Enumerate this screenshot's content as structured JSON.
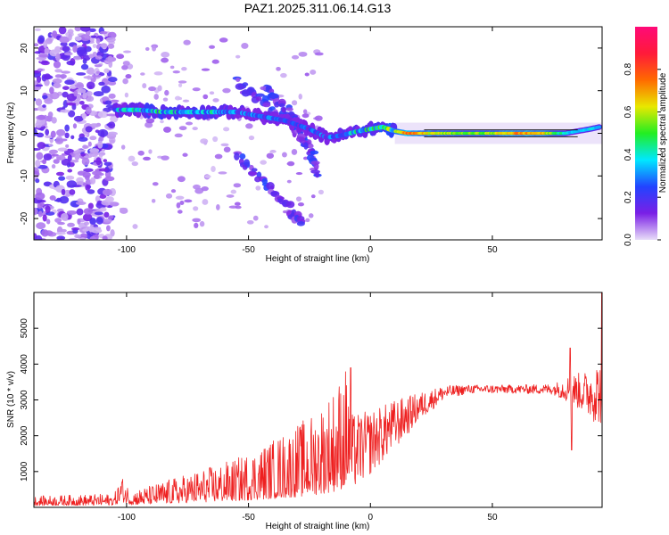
{
  "title": "PAZ1.2025.311.06.14.G13",
  "chart_data": [
    {
      "type": "heatmap",
      "name": "spectrogram",
      "xlabel": "Height of straight line (km)",
      "ylabel": "Frequency (Hz)",
      "xlim": [
        -138,
        95
      ],
      "ylim": [
        -25,
        25
      ],
      "xticks": [
        -100,
        -50,
        0,
        50
      ],
      "yticks": [
        -20,
        -10,
        0,
        10,
        20
      ],
      "colorbar": {
        "label": "Normalized spectral amplitude",
        "range": [
          0,
          1
        ],
        "ticks": [
          0.0,
          0.2,
          0.4,
          0.6,
          0.8
        ],
        "colors": [
          "#e8ddf8",
          "#7a1fe6",
          "#2244ff",
          "#00e8ff",
          "#22ee22",
          "#e8e800",
          "#ff6a00",
          "#ff1a3a",
          "#ff0a78"
        ]
      },
      "ridge": [
        {
          "height": -105,
          "freq": 5.5,
          "amp": 0.35
        },
        {
          "height": -95,
          "freq": 5.5,
          "amp": 0.4
        },
        {
          "height": -85,
          "freq": 5.0,
          "amp": 0.45
        },
        {
          "height": -75,
          "freq": 5.0,
          "amp": 0.35
        },
        {
          "height": -65,
          "freq": 5.0,
          "amp": 0.4
        },
        {
          "height": -55,
          "freq": 5.0,
          "amp": 0.3
        },
        {
          "height": -45,
          "freq": 4.0,
          "amp": 0.3
        },
        {
          "height": -35,
          "freq": 3.0,
          "amp": 0.25
        },
        {
          "height": -25,
          "freq": 1.0,
          "amp": 0.25
        },
        {
          "height": -18,
          "freq": -1.0,
          "amp": 0.3
        },
        {
          "height": -12,
          "freq": -0.5,
          "amp": 0.35
        },
        {
          "height": -5,
          "freq": 0.5,
          "amp": 0.4
        },
        {
          "height": 0,
          "freq": 1.0,
          "amp": 0.45
        },
        {
          "height": 5,
          "freq": 1.5,
          "amp": 0.5
        },
        {
          "height": 10,
          "freq": 0.5,
          "amp": 0.6
        },
        {
          "height": 15,
          "freq": 0.0,
          "amp": 0.8
        },
        {
          "height": 20,
          "freq": 0.0,
          "amp": 0.7
        },
        {
          "height": 30,
          "freq": 0.0,
          "amp": 0.6
        },
        {
          "height": 40,
          "freq": 0.0,
          "amp": 0.55
        },
        {
          "height": 50,
          "freq": 0.0,
          "amp": 0.6
        },
        {
          "height": 60,
          "freq": 0.0,
          "amp": 0.75
        },
        {
          "height": 70,
          "freq": 0.0,
          "amp": 0.7
        },
        {
          "height": 80,
          "freq": 0.0,
          "amp": 0.4
        },
        {
          "height": 85,
          "freq": 0.5,
          "amp": 0.35
        },
        {
          "height": 90,
          "freq": 1.0,
          "amp": 0.4
        },
        {
          "height": 94,
          "freq": 1.5,
          "amp": 0.35
        }
      ],
      "branches": [
        {
          "name": "upper-branch",
          "points": [
            [
              -55,
              12
            ],
            [
              -48,
              9
            ],
            [
              -40,
              6
            ],
            [
              -33,
              2
            ],
            [
              -27,
              -1
            ],
            [
              -24,
              -5
            ],
            [
              -22,
              -10
            ]
          ]
        },
        {
          "name": "second-branch",
          "points": [
            [
              -43,
              11
            ],
            [
              -38,
              8
            ],
            [
              -33,
              5
            ],
            [
              -29,
              0
            ],
            [
              -26,
              -4
            ]
          ]
        },
        {
          "name": "lower-branch",
          "points": [
            [
              -55,
              -5
            ],
            [
              -48,
              -9
            ],
            [
              -40,
              -14
            ],
            [
              -33,
              -18
            ],
            [
              -27,
              -22
            ]
          ]
        }
      ]
    },
    {
      "type": "line",
      "name": "snr",
      "xlabel": "Height of straight line (km)",
      "ylabel": "SNR (10 * v/v)",
      "xlim": [
        -138,
        95
      ],
      "ylim": [
        0,
        6000
      ],
      "xticks": [
        -100,
        -50,
        0,
        50
      ],
      "yticks": [
        1000,
        2000,
        3000,
        4000,
        5000
      ],
      "color": "#ee2020",
      "envelope": [
        {
          "height": -138,
          "mean": 130,
          "spread": 60
        },
        {
          "height": -105,
          "mean": 150,
          "spread": 80
        },
        {
          "height": -102,
          "mean": 400,
          "spread": 120
        },
        {
          "height": -98,
          "mean": 180,
          "spread": 90
        },
        {
          "height": -85,
          "mean": 250,
          "spread": 200
        },
        {
          "height": -70,
          "mean": 350,
          "spread": 300
        },
        {
          "height": -55,
          "mean": 450,
          "spread": 400
        },
        {
          "height": -40,
          "mean": 600,
          "spread": 600
        },
        {
          "height": -25,
          "mean": 800,
          "spread": 800
        },
        {
          "height": -15,
          "mean": 1100,
          "spread": 1000
        },
        {
          "height": -8,
          "mean": 1500,
          "spread": 1100
        },
        {
          "height": 0,
          "mean": 1800,
          "spread": 900
        },
        {
          "height": 10,
          "mean": 2300,
          "spread": 700
        },
        {
          "height": 20,
          "mean": 2800,
          "spread": 400
        },
        {
          "height": 30,
          "mean": 3200,
          "spread": 200
        },
        {
          "height": 40,
          "mean": 3300,
          "spread": 120
        },
        {
          "height": 60,
          "mean": 3300,
          "spread": 120
        },
        {
          "height": 75,
          "mean": 3300,
          "spread": 150
        },
        {
          "height": 82,
          "mean": 3300,
          "spread": 400
        },
        {
          "height": 88,
          "mean": 3200,
          "spread": 600
        },
        {
          "height": 93,
          "mean": 3200,
          "spread": 900
        }
      ],
      "spikes": [
        {
          "height": -102,
          "value": 700
        },
        {
          "height": -8,
          "value": 3900
        },
        {
          "height": 82,
          "value": 4450
        },
        {
          "height": 82.5,
          "value": 1600
        },
        {
          "height": 95,
          "value": 6000
        }
      ]
    }
  ]
}
